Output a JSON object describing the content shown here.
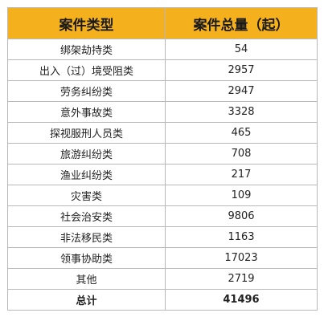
{
  "table": {
    "header": {
      "col1": "案件类型",
      "col2": "案件总量（起）"
    },
    "rows": [
      {
        "type": "绑架劫持类",
        "count": "54"
      },
      {
        "type": "出入（过）境受阻类",
        "count": "2957"
      },
      {
        "type": "劳务纠纷类",
        "count": "2947"
      },
      {
        "type": "意外事故类",
        "count": "3328"
      },
      {
        "type": "探视服刑人员类",
        "count": "465"
      },
      {
        "type": "旅游纠纷类",
        "count": "708"
      },
      {
        "type": "渔业纠纷类",
        "count": "217"
      },
      {
        "type": "灾害类",
        "count": "109"
      },
      {
        "type": "社会治安类",
        "count": "9806"
      },
      {
        "type": "非法移民类",
        "count": "1163"
      },
      {
        "type": "领事协助类",
        "count": "17023"
      },
      {
        "type": "其他",
        "count": "2719"
      }
    ],
    "total": {
      "label": "总计",
      "count": "41496"
    }
  },
  "colors": {
    "header_bg": "#f5b01d",
    "border": "#b9b9b9",
    "text": "#222222"
  }
}
